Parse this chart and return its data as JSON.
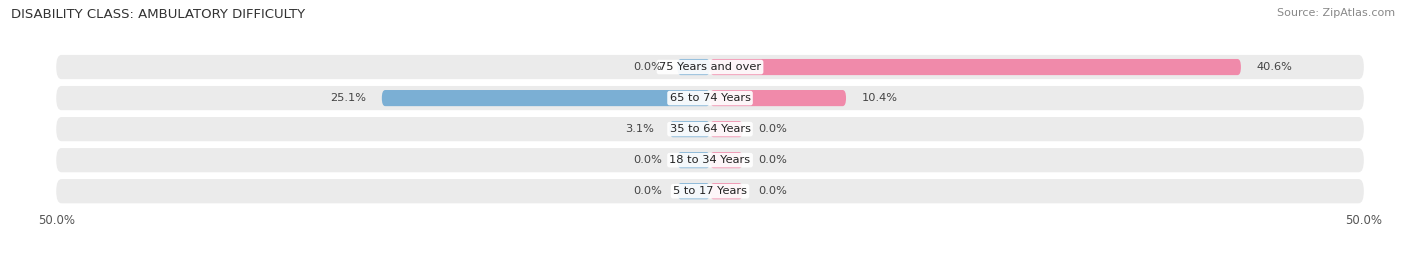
{
  "title": "DISABILITY CLASS: AMBULATORY DIFFICULTY",
  "source": "Source: ZipAtlas.com",
  "categories": [
    "5 to 17 Years",
    "18 to 34 Years",
    "35 to 64 Years",
    "65 to 74 Years",
    "75 Years and over"
  ],
  "male_values": [
    0.0,
    0.0,
    3.1,
    25.1,
    0.0
  ],
  "female_values": [
    0.0,
    0.0,
    0.0,
    10.4,
    40.6
  ],
  "male_color": "#7bafd4",
  "female_color": "#f08aaa",
  "row_bg_color": "#ebebeb",
  "axis_limit": 50.0,
  "title_fontsize": 9.5,
  "label_fontsize": 8.2,
  "tick_fontsize": 8.5,
  "source_fontsize": 8
}
